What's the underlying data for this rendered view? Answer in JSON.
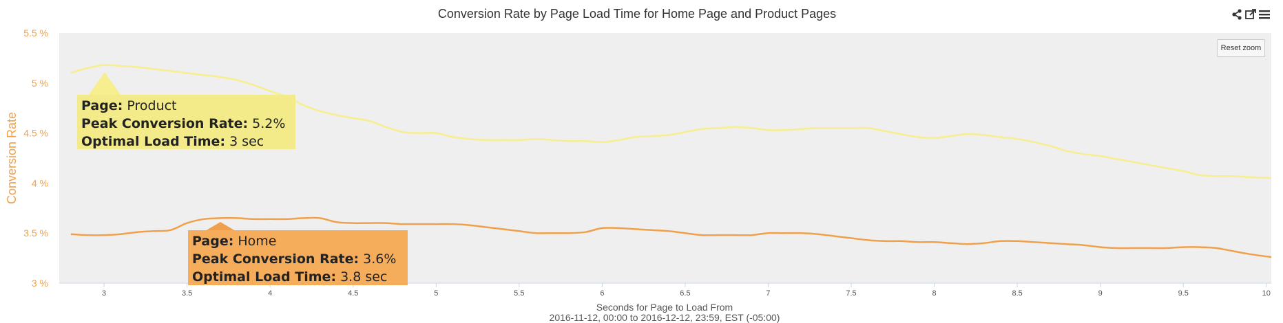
{
  "title": "Conversion Rate by Page Load Time for Home Page and Product Pages",
  "toolbar": {
    "reset_zoom": "Reset zoom",
    "icons": [
      "share-icon",
      "external-link-icon",
      "menu-icon"
    ]
  },
  "colors": {
    "product": "#f6ee8f",
    "home": "#f0a04b",
    "plot_bg": "#efefef",
    "axis_label": "#f0a04b"
  },
  "annotations": {
    "product": {
      "page_label": "Page:",
      "page_value": " Product",
      "peak_label": "Peak Conversion Rate:",
      "peak_value": " 5.2%",
      "optimal_label": "Optimal Load Time:",
      "optimal_value": " 3 sec"
    },
    "home": {
      "page_label": "Page:",
      "page_value": " Home",
      "peak_label": "Peak Conversion Rate:",
      "peak_value": " 3.6%",
      "optimal_label": "Optimal Load Time:",
      "optimal_value": " 3.8 sec"
    }
  },
  "chart_data": {
    "type": "line",
    "title": "Conversion Rate by Page Load Time for Home Page and Product Pages",
    "xlabel": "Seconds for Page to Load From",
    "xlabel_sub": "2016-11-12, 00:00 to 2016-12-12, 23:59, EST (-05:00)",
    "ylabel": "Conversion Rate",
    "xlim": [
      2.73,
      10.03
    ],
    "ylim": [
      3,
      5.5
    ],
    "x_ticks": [
      "3",
      "3.5",
      "4",
      "4.5",
      "5",
      "5.5",
      "6",
      "6.5",
      "7",
      "7.5",
      "8",
      "8.5",
      "9",
      "9.5",
      "10"
    ],
    "y_ticks": [
      "3 %",
      "3.5 %",
      "4 %",
      "4.5 %",
      "5 %",
      "5.5 %"
    ],
    "grid": false,
    "series": [
      {
        "name": "Product",
        "x": [
          2.8,
          2.9,
          3.0,
          3.1,
          3.2,
          3.3,
          3.4,
          3.5,
          3.6,
          3.7,
          3.8,
          3.9,
          4.0,
          4.1,
          4.2,
          4.3,
          4.4,
          4.5,
          4.6,
          4.7,
          4.8,
          4.9,
          5.0,
          5.1,
          5.2,
          5.3,
          5.4,
          5.5,
          5.6,
          5.7,
          5.8,
          5.9,
          6.0,
          6.1,
          6.2,
          6.3,
          6.4,
          6.5,
          6.6,
          6.7,
          6.8,
          6.9,
          7.0,
          7.1,
          7.2,
          7.3,
          7.4,
          7.5,
          7.6,
          7.7,
          7.8,
          7.9,
          8.0,
          8.1,
          8.2,
          8.3,
          8.4,
          8.5,
          8.6,
          8.7,
          8.8,
          8.9,
          9.0,
          9.1,
          9.2,
          9.3,
          9.4,
          9.5,
          9.6,
          9.7,
          9.8,
          9.9,
          10.03
        ],
        "values": [
          5.1,
          5.15,
          5.18,
          5.17,
          5.16,
          5.14,
          5.12,
          5.1,
          5.08,
          5.06,
          5.03,
          4.98,
          4.92,
          4.86,
          4.78,
          4.72,
          4.68,
          4.65,
          4.62,
          4.56,
          4.51,
          4.5,
          4.5,
          4.46,
          4.44,
          4.43,
          4.43,
          4.43,
          4.44,
          4.43,
          4.42,
          4.42,
          4.41,
          4.43,
          4.46,
          4.47,
          4.48,
          4.51,
          4.54,
          4.55,
          4.56,
          4.55,
          4.53,
          4.53,
          4.54,
          4.55,
          4.55,
          4.55,
          4.55,
          4.52,
          4.49,
          4.46,
          4.45,
          4.47,
          4.49,
          4.48,
          4.46,
          4.44,
          4.41,
          4.37,
          4.32,
          4.29,
          4.27,
          4.24,
          4.21,
          4.18,
          4.15,
          4.12,
          4.08,
          4.07,
          4.07,
          4.06,
          4.05
        ]
      },
      {
        "name": "Home",
        "x": [
          2.8,
          2.9,
          3.0,
          3.1,
          3.2,
          3.3,
          3.4,
          3.5,
          3.6,
          3.7,
          3.8,
          3.9,
          4.0,
          4.1,
          4.2,
          4.3,
          4.4,
          4.5,
          4.6,
          4.7,
          4.8,
          4.9,
          5.0,
          5.1,
          5.2,
          5.3,
          5.4,
          5.5,
          5.6,
          5.7,
          5.8,
          5.9,
          6.0,
          6.1,
          6.2,
          6.3,
          6.4,
          6.5,
          6.6,
          6.7,
          6.8,
          6.9,
          7.0,
          7.1,
          7.2,
          7.3,
          7.4,
          7.5,
          7.6,
          7.7,
          7.8,
          7.9,
          8.0,
          8.1,
          8.2,
          8.3,
          8.4,
          8.5,
          8.6,
          8.7,
          8.8,
          8.9,
          9.0,
          9.1,
          9.2,
          9.3,
          9.4,
          9.5,
          9.6,
          9.7,
          9.8,
          9.9,
          10.03
        ],
        "values": [
          3.49,
          3.48,
          3.48,
          3.49,
          3.51,
          3.52,
          3.53,
          3.6,
          3.64,
          3.65,
          3.65,
          3.64,
          3.64,
          3.64,
          3.65,
          3.65,
          3.61,
          3.6,
          3.6,
          3.6,
          3.59,
          3.59,
          3.59,
          3.59,
          3.58,
          3.56,
          3.54,
          3.52,
          3.5,
          3.5,
          3.5,
          3.51,
          3.55,
          3.55,
          3.54,
          3.53,
          3.52,
          3.5,
          3.48,
          3.48,
          3.48,
          3.48,
          3.5,
          3.5,
          3.5,
          3.49,
          3.47,
          3.45,
          3.43,
          3.42,
          3.42,
          3.41,
          3.41,
          3.4,
          3.39,
          3.4,
          3.42,
          3.42,
          3.41,
          3.4,
          3.39,
          3.38,
          3.36,
          3.35,
          3.35,
          3.35,
          3.35,
          3.36,
          3.36,
          3.35,
          3.32,
          3.29,
          3.26
        ]
      }
    ]
  }
}
